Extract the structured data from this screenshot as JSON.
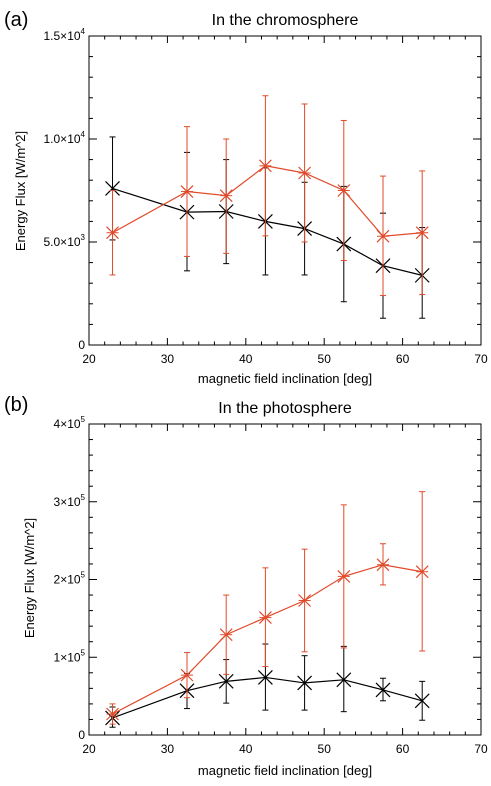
{
  "panels": [
    {
      "letter": "(a)",
      "chart_data": {
        "type": "line",
        "title": "In the chromosphere",
        "xlabel": "magnetic field inclination [deg]",
        "ylabel": "Energy Flux [W/m^2]",
        "xlim": [
          20,
          70
        ],
        "ylim": [
          0,
          15000
        ],
        "xticks": [
          20,
          30,
          40,
          50,
          60,
          70
        ],
        "yticks": [
          {
            "value": 0,
            "mant": "0",
            "exp": ""
          },
          {
            "value": 5000,
            "mant": "5.0×10",
            "exp": "3"
          },
          {
            "value": 10000,
            "mant": "1.0×10",
            "exp": "4"
          },
          {
            "value": 15000,
            "mant": "1.5×10",
            "exp": "4"
          }
        ],
        "x": [
          23,
          32.5,
          37.5,
          42.5,
          47.5,
          52.5,
          57.5,
          62.5
        ],
        "series": [
          {
            "color": "#000000",
            "values": [
              7600,
              6450,
              6480,
              6000,
              5650,
              4900,
              3850,
              3380
            ],
            "err_upper": [
              10100,
              9350,
              9000,
              8600,
              7900,
              7700,
              6400,
              5700
            ],
            "err_lower": [
              5100,
              3600,
              3950,
              3400,
              3400,
              2100,
              1300,
              1300
            ]
          },
          {
            "color": "#e04a2a",
            "values": [
              5450,
              7450,
              7250,
              8700,
              8350,
              7500,
              5280,
              5450
            ],
            "err_upper": [
              7500,
              10600,
              10000,
              12100,
              11700,
              10900,
              8200,
              8450
            ],
            "err_lower": [
              3400,
              4300,
              4450,
              5300,
              5000,
              4100,
              2400,
              2450
            ]
          }
        ],
        "grid": false
      }
    },
    {
      "letter": "(b)",
      "chart_data": {
        "type": "line",
        "title": "In the photosphere",
        "xlabel": "magnetic field inclination [deg]",
        "ylabel": "Energy Flux [W/m^2]",
        "xlim": [
          20,
          70
        ],
        "ylim": [
          0,
          400000
        ],
        "xticks": [
          20,
          30,
          40,
          50,
          60,
          70
        ],
        "yticks": [
          {
            "value": 0,
            "mant": "0",
            "exp": ""
          },
          {
            "value": 100000,
            "mant": "1×10",
            "exp": "5"
          },
          {
            "value": 200000,
            "mant": "2×10",
            "exp": "5"
          },
          {
            "value": 300000,
            "mant": "3×10",
            "exp": "5"
          },
          {
            "value": 400000,
            "mant": "4×10",
            "exp": "5"
          }
        ],
        "x": [
          23,
          32.5,
          37.5,
          42.5,
          47.5,
          52.5,
          57.5,
          62.5
        ],
        "series": [
          {
            "color": "#000000",
            "values": [
              22000,
              57000,
              69000,
              74000,
              67000,
              71000,
              58000,
              44000
            ],
            "err_upper": [
              36000,
              79000,
              97000,
              117000,
              102000,
              114000,
              73000,
              69000
            ],
            "err_lower": [
              10000,
              34000,
              41000,
              32000,
              32000,
              30000,
              44000,
              19000
            ]
          },
          {
            "color": "#e04a2a",
            "values": [
              27000,
              77000,
              129000,
              151000,
              173000,
              204000,
              219000,
              210000
            ],
            "err_upper": [
              40000,
              106000,
              180000,
              215000,
              239000,
              296000,
              246000,
              313000
            ],
            "err_lower": [
              14000,
              48000,
              78000,
              88000,
              107000,
              112000,
              193000,
              108000
            ]
          }
        ],
        "grid": false
      }
    }
  ]
}
